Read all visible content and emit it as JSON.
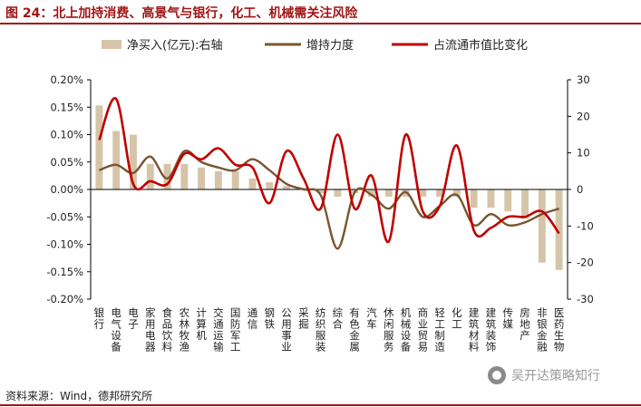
{
  "header": {
    "title": "图 24：北上加持消费、高景气与银行，化工、机械需关注风险"
  },
  "footer": {
    "source": "资料来源：Wind，德邦研究所"
  },
  "watermark": {
    "text": "吴开达策略知行",
    "icon": "wechat-logo-icon"
  },
  "colors": {
    "bar": "#d6c4a8",
    "strength": "#7a5530",
    "change": "#c00000",
    "title": "#a01515"
  },
  "chart_data": {
    "type": "bar",
    "title": "",
    "categories": [
      "银行",
      "电气设备",
      "电子",
      "家用电器",
      "食品饮料",
      "农林牧渔",
      "计算机",
      "交通运输",
      "国防军工",
      "通信",
      "钢铁",
      "公用事业",
      "采掘",
      "纺织服装",
      "综合",
      "有色金属",
      "汽车",
      "休闲服务",
      "机械设备",
      "商业贸易",
      "轻工制造",
      "化工",
      "建筑材料",
      "建筑装饰",
      "传媒",
      "房地产",
      "非银金融",
      "医药生物"
    ],
    "left_axis": {
      "min": -0.2,
      "max": 0.2,
      "step": 0.05,
      "tick_labels": [
        "0.20%",
        "0.15%",
        "0.10%",
        "0.05%",
        "0.00%",
        "-0.05%",
        "-0.10%",
        "-0.15%",
        "-0.20%"
      ]
    },
    "right_axis": {
      "min": -30,
      "max": 30,
      "step": 10,
      "tick_labels": [
        "30",
        "20",
        "10",
        "0",
        "-10",
        "-20",
        "-30"
      ]
    },
    "legend": {
      "position": "top",
      "items": [
        "净买入(亿元):右轴",
        "增持力度",
        "占流通市值比变化"
      ]
    },
    "series": [
      {
        "name": "净买入(亿元):右轴",
        "type": "bar",
        "axis": "right",
        "values": [
          23,
          16,
          15,
          7,
          7,
          7,
          6,
          5,
          5,
          3,
          2,
          1,
          0.5,
          -1,
          -2,
          -1,
          -2,
          -2,
          -2,
          -2,
          -2,
          -2,
          -5,
          -5,
          -6,
          -8,
          -20,
          -22
        ]
      },
      {
        "name": "增持力度",
        "type": "line",
        "axis": "left",
        "values": [
          0.035,
          0.045,
          0.03,
          0.06,
          0.02,
          0.07,
          0.05,
          0.04,
          0.035,
          0.055,
          0.035,
          0.01,
          0.0,
          -0.01,
          -0.108,
          -0.005,
          -0.01,
          -0.035,
          -0.005,
          -0.05,
          -0.03,
          -0.01,
          -0.065,
          -0.045,
          -0.065,
          -0.06,
          -0.045,
          -0.035
        ]
      },
      {
        "name": "占流通市值比变化",
        "type": "line",
        "axis": "left",
        "values": [
          0.09,
          0.165,
          0.01,
          0.015,
          0.01,
          0.065,
          0.055,
          0.075,
          0.045,
          0.04,
          -0.025,
          0.07,
          0.02,
          -0.035,
          0.1,
          -0.035,
          0.025,
          -0.095,
          0.1,
          -0.04,
          -0.03,
          0.08,
          -0.075,
          -0.07,
          -0.05,
          -0.05,
          -0.04,
          -0.08
        ]
      }
    ]
  }
}
